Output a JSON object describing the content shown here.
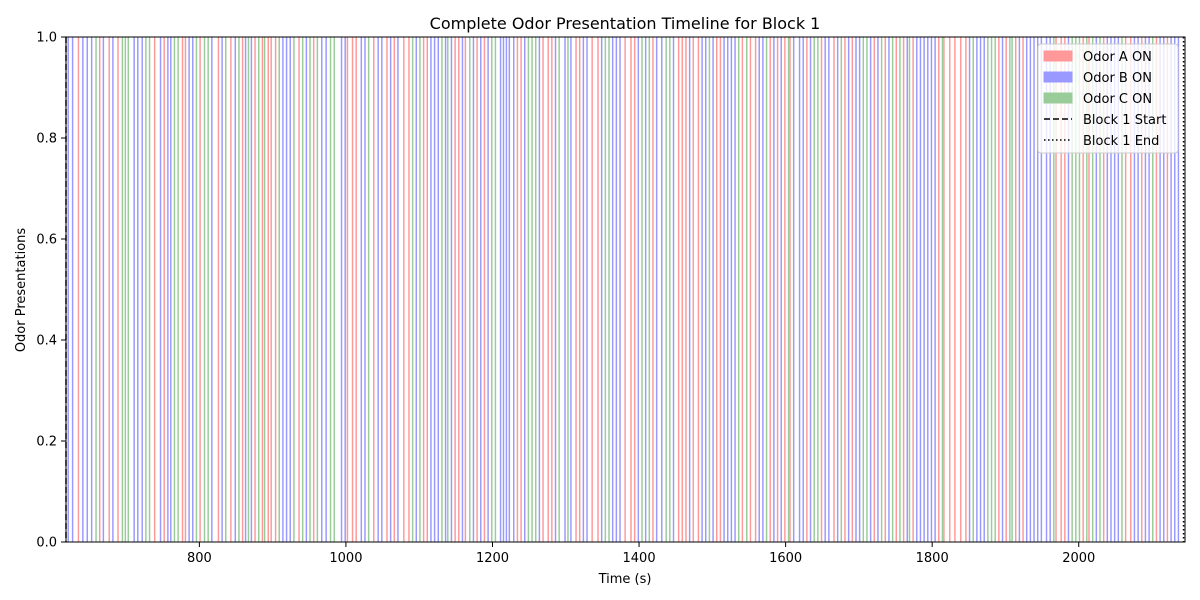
{
  "chart_data": {
    "type": "bar",
    "title": "Complete Odor Presentation Timeline for Block 1",
    "xlabel": "Time (s)",
    "ylabel": "Odor Presentations",
    "xlim": [
      618,
      2145
    ],
    "ylim": [
      0,
      1
    ],
    "xticks": [
      800,
      1000,
      1200,
      1400,
      1600,
      1800,
      2000
    ],
    "yticks": [
      "0.0",
      "0.2",
      "0.4",
      "0.6",
      "0.8",
      "1.0"
    ],
    "grid": false,
    "legend_position": "top-right",
    "event_duration_s": 2,
    "series": [
      {
        "name": "Odor A ON",
        "color": "#ff9999",
        "onsets": [
          634,
          663,
          676,
          688,
          738,
          751,
          776,
          780,
          800,
          825,
          842,
          858,
          875,
          885,
          893,
          897,
          903,
          935,
          955,
          1001,
          1008,
          1013,
          1037,
          1055,
          1065,
          1078,
          1085,
          1105,
          1110,
          1148,
          1153,
          1162,
          1178,
          1188,
          1233,
          1238,
          1268,
          1275,
          1280,
          1313,
          1318,
          1335,
          1343,
          1380,
          1388,
          1393,
          1418,
          1453,
          1458,
          1463,
          1473,
          1480,
          1505,
          1510,
          1540,
          1551,
          1558,
          1578,
          1588,
          1598,
          1605,
          1628,
          1648,
          1665,
          1680,
          1690,
          1720,
          1735,
          1750,
          1760,
          1773,
          1808,
          1815,
          1823,
          1830,
          1838,
          1845,
          1890,
          1900,
          1913,
          1923,
          1968,
          1975,
          1980,
          2005,
          2013,
          2033,
          2063,
          2070,
          2085,
          2105,
          2120
        ]
      },
      {
        "name": "Odor B ON",
        "color": "#9999ff",
        "onsets": [
          620,
          626,
          640,
          646,
          652,
          668,
          681,
          710,
          715,
          721,
          746,
          756,
          760,
          785,
          790,
          816,
          830,
          848,
          862,
          870,
          913,
          918,
          923,
          945,
          966,
          972,
          993,
          998,
          1020,
          1025,
          1043,
          1048,
          1060,
          1070,
          1095,
          1115,
          1120,
          1125,
          1135,
          1143,
          1158,
          1173,
          1183,
          1193,
          1210,
          1214,
          1218,
          1222,
          1228,
          1243,
          1263,
          1285,
          1298,
          1306,
          1323,
          1328,
          1348,
          1363,
          1368,
          1373,
          1398,
          1408,
          1423,
          1430,
          1446,
          1468,
          1485,
          1490,
          1500,
          1515,
          1520,
          1525,
          1530,
          1563,
          1568,
          1583,
          1593,
          1610,
          1618,
          1623,
          1633,
          1653,
          1658,
          1670,
          1685,
          1695,
          1700,
          1715,
          1725,
          1740,
          1765,
          1778,
          1783,
          1788,
          1793,
          1798,
          1803,
          1850,
          1860,
          1865,
          1870,
          1895,
          1918,
          1928,
          1933,
          1938,
          1943,
          1948,
          1955,
          1960,
          1985,
          2023,
          2038,
          2043,
          2048,
          2053,
          2075,
          2080,
          2090,
          2095,
          2110,
          2115,
          2125,
          2130,
          2135
        ]
      },
      {
        "name": "Odor C ON",
        "color": "#99cc99",
        "onsets": [
          658,
          694,
          698,
          702,
          726,
          731,
          765,
          770,
          795,
          806,
          811,
          835,
          853,
          866,
          880,
          888,
          908,
          928,
          940,
          950,
          960,
          978,
          983,
          1030,
          1090,
          1100,
          1130,
          1138,
          1168,
          1198,
          1203,
          1248,
          1253,
          1258,
          1290,
          1302,
          1353,
          1358,
          1403,
          1413,
          1436,
          1441,
          1495,
          1535,
          1546,
          1573,
          1603,
          1638,
          1643,
          1675,
          1705,
          1710,
          1730,
          1745,
          1755,
          1768,
          1813,
          1855,
          1875,
          1880,
          1885,
          1905,
          1908,
          1965,
          1990,
          1995,
          2000,
          2010,
          2018,
          2028,
          2058,
          2100
        ]
      }
    ],
    "reference_lines": [
      {
        "name": "Block 1 Start",
        "x": 618,
        "style": "dashed"
      },
      {
        "name": "Block 1 End",
        "x": 2143,
        "style": "dotted"
      }
    ]
  }
}
